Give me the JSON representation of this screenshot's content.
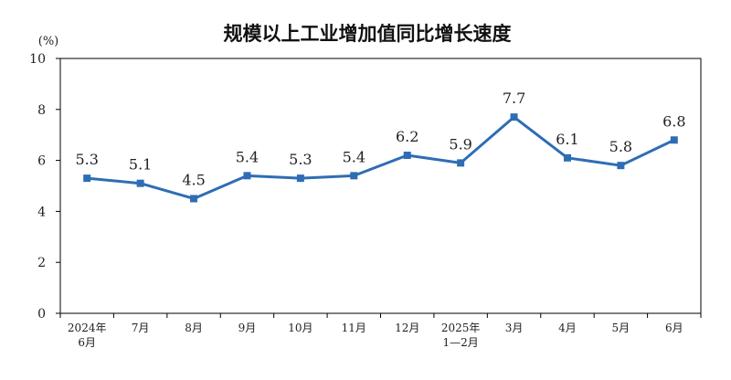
{
  "chart_data": {
    "type": "line",
    "title": "规模以上工业增加值同比增长速度",
    "unit_label": "(%)",
    "xlabel": "",
    "ylabel": "",
    "ylim": [
      0,
      10
    ],
    "yticks": [
      "0",
      "2",
      "4",
      "6",
      "8",
      "10"
    ],
    "ytick_values": [
      0,
      2,
      4,
      6,
      8,
      10
    ],
    "categories": [
      [
        "2024年",
        "6月"
      ],
      [
        "7月"
      ],
      [
        "8月"
      ],
      [
        "9月"
      ],
      [
        "10月"
      ],
      [
        "11月"
      ],
      [
        "12月"
      ],
      [
        "2025年",
        "1—2月"
      ],
      [
        "3月"
      ],
      [
        "4月"
      ],
      [
        "5月"
      ],
      [
        "6月"
      ]
    ],
    "values": [
      5.3,
      5.1,
      4.5,
      5.4,
      5.3,
      5.4,
      6.2,
      5.9,
      7.7,
      6.1,
      5.8,
      6.8
    ],
    "data_labels": [
      "5.3",
      "5.1",
      "4.5",
      "5.4",
      "5.3",
      "5.4",
      "6.2",
      "5.9",
      "7.7",
      "6.1",
      "5.8",
      "6.8"
    ],
    "grid": false,
    "legend": "none",
    "series_color": "#2E6DB4",
    "axis_color": "#000000"
  }
}
